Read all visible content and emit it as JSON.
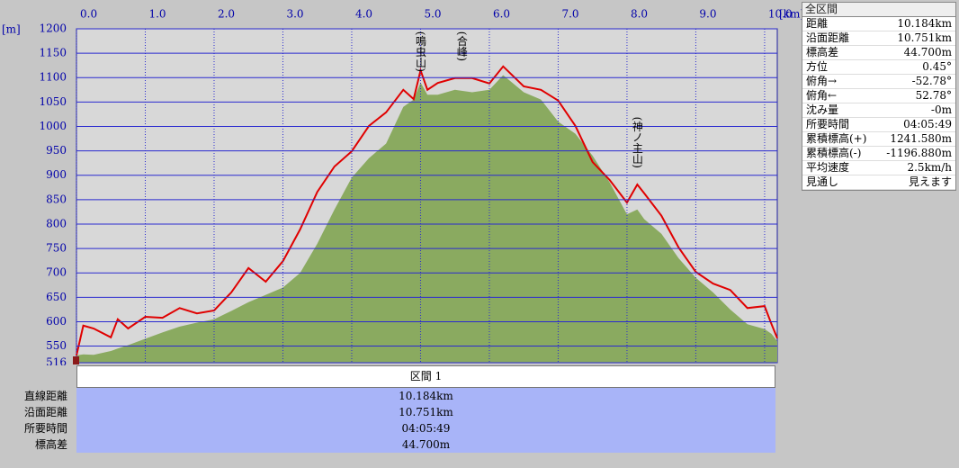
{
  "chart_data": {
    "type": "area-line",
    "x_unit": "[km]",
    "y_unit": "[m]",
    "x": [
      0,
      0.1,
      0.25,
      0.5,
      0.6,
      0.75,
      1.0,
      1.25,
      1.5,
      1.75,
      2.0,
      2.25,
      2.5,
      2.75,
      3.0,
      3.25,
      3.5,
      3.75,
      4.0,
      4.25,
      4.5,
      4.75,
      4.9,
      5.0,
      5.1,
      5.25,
      5.5,
      5.75,
      6.0,
      6.2,
      6.5,
      6.75,
      7.0,
      7.25,
      7.5,
      7.75,
      8.0,
      8.15,
      8.25,
      8.5,
      8.75,
      9.0,
      9.25,
      9.5,
      9.75,
      10.0,
      10.1,
      10.184
    ],
    "series": [
      {
        "kind": "area",
        "color": "#8aaa60",
        "values": [
          531,
          533,
          532,
          540,
          545,
          552,
          565,
          578,
          590,
          598,
          605,
          622,
          640,
          655,
          670,
          700,
          760,
          830,
          895,
          935,
          965,
          1040,
          1055,
          1090,
          1065,
          1065,
          1075,
          1070,
          1075,
          1105,
          1070,
          1055,
          1010,
          985,
          940,
          885,
          820,
          830,
          810,
          780,
          730,
          690,
          660,
          625,
          595,
          585,
          575,
          560
        ]
      },
      {
        "kind": "line",
        "color": "#e00000",
        "values": [
          531,
          592,
          586,
          568,
          605,
          586,
          610,
          608,
          628,
          617,
          623,
          660,
          710,
          682,
          724,
          789,
          866,
          918,
          949,
          1001,
          1029,
          1075,
          1056,
          1115,
          1075,
          1089,
          1099,
          1099,
          1088,
          1123,
          1082,
          1075,
          1053,
          1001,
          927,
          890,
          844,
          881,
          863,
          817,
          752,
          702,
          678,
          665,
          628,
          632,
          595,
          566
        ]
      }
    ],
    "xlim": [
      0,
      10.184
    ],
    "ylim": [
      516,
      1200
    ],
    "xticks": [
      {
        "value": 0,
        "label": "0.0"
      },
      {
        "value": 1,
        "label": "1.0"
      },
      {
        "value": 2,
        "label": "2.0"
      },
      {
        "value": 3,
        "label": "3.0"
      },
      {
        "value": 4,
        "label": "4.0"
      },
      {
        "value": 5,
        "label": "5.0"
      },
      {
        "value": 6,
        "label": "6.0"
      },
      {
        "value": 7,
        "label": "7.0"
      },
      {
        "value": 8,
        "label": "8.0"
      },
      {
        "value": 9,
        "label": "9.0"
      },
      {
        "value": 10,
        "label": "10.0"
      }
    ],
    "yticks": [
      516,
      550,
      600,
      650,
      700,
      750,
      800,
      850,
      900,
      950,
      1000,
      1050,
      1100,
      1150,
      1200
    ],
    "grid": true,
    "annotations": [
      {
        "text": "(鳴虫山)",
        "x": 5.0,
        "y": 1195
      },
      {
        "text": "(合峰)",
        "x": 5.6,
        "y": 1195
      },
      {
        "text": "(神ノ主山)",
        "x": 8.15,
        "y": 1020
      }
    ]
  },
  "summary_panel": {
    "title": "全区間",
    "rows": [
      [
        "距離",
        "10.184km"
      ],
      [
        "沿面距離",
        "10.751km"
      ],
      [
        "標高差",
        "44.700m"
      ],
      [
        "方位",
        "0.45°"
      ],
      [
        "俯角→",
        "-52.78°"
      ],
      [
        "俯角←",
        "52.78°"
      ],
      [
        "沈み量",
        "-0m"
      ],
      [
        "所要時間",
        "04:05:49"
      ],
      [
        "累積標高(+)",
        "1241.580m"
      ],
      [
        "累積標高(-)",
        "-1196.880m"
      ],
      [
        "平均速度",
        "2.5km/h"
      ],
      [
        "見通し",
        "見えます"
      ]
    ]
  },
  "segment_table": {
    "header": "区間 1",
    "rows": [
      [
        "直線距離",
        "10.184km"
      ],
      [
        "沿面距離",
        "10.751km"
      ],
      [
        "所要時間",
        "04:05:49"
      ],
      [
        "標高差",
        "44.700m"
      ]
    ]
  }
}
